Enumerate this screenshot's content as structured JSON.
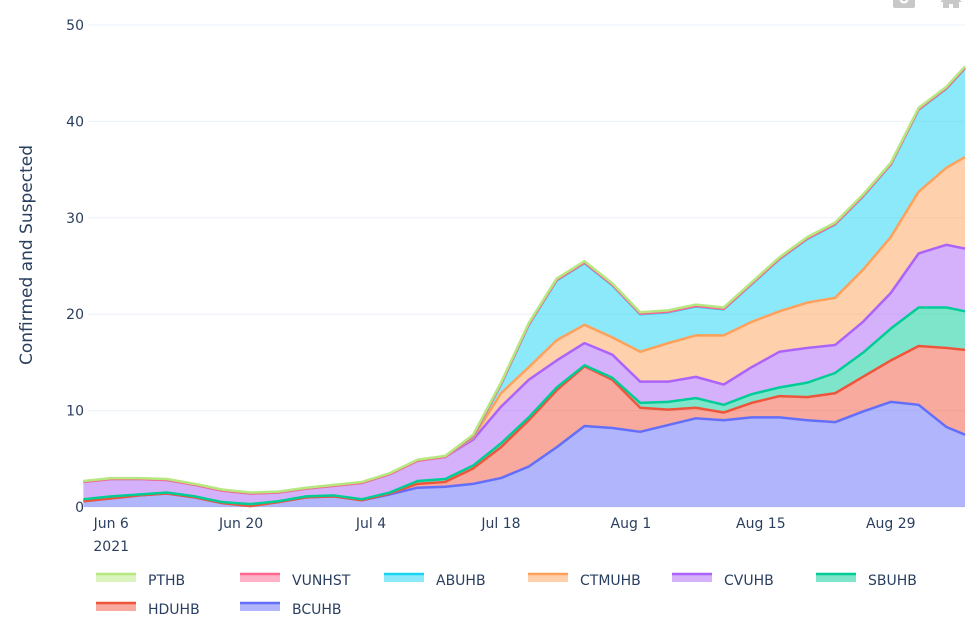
{
  "modebar": {
    "icons": [
      "camera-icon",
      "home-icon"
    ]
  },
  "chart_data": {
    "type": "area",
    "stacked": true,
    "title": "",
    "xlabel": "",
    "ylabel": "Confirmed and Suspected",
    "ylim": [
      0,
      50
    ],
    "yticks": [
      "0",
      "10",
      "20",
      "30",
      "40",
      "50"
    ],
    "x_range": [
      "2021-06-03",
      "2021-09-06"
    ],
    "xticks": [
      {
        "date": "2021-06-06",
        "label": "Jun 6",
        "sublabel": "2021"
      },
      {
        "date": "2021-06-20",
        "label": "Jun 20"
      },
      {
        "date": "2021-07-04",
        "label": "Jul 4"
      },
      {
        "date": "2021-07-18",
        "label": "Jul 18"
      },
      {
        "date": "2021-08-01",
        "label": "Aug 1"
      },
      {
        "date": "2021-08-15",
        "label": "Aug 15"
      },
      {
        "date": "2021-08-29",
        "label": "Aug 29"
      }
    ],
    "grid": true,
    "legend_placement": "bottom",
    "legend_order": [
      "PTHB",
      "VUNHST",
      "ABUHB",
      "CTMUHB",
      "CVUHB",
      "SBUHB",
      "HDUHB",
      "BCUHB"
    ],
    "x": [
      "2021-06-03",
      "2021-06-06",
      "2021-06-09",
      "2021-06-12",
      "2021-06-15",
      "2021-06-18",
      "2021-06-21",
      "2021-06-24",
      "2021-06-27",
      "2021-06-30",
      "2021-07-03",
      "2021-07-06",
      "2021-07-09",
      "2021-07-12",
      "2021-07-15",
      "2021-07-18",
      "2021-07-21",
      "2021-07-24",
      "2021-07-27",
      "2021-07-30",
      "2021-08-02",
      "2021-08-05",
      "2021-08-08",
      "2021-08-11",
      "2021-08-14",
      "2021-08-17",
      "2021-08-20",
      "2021-08-23",
      "2021-08-26",
      "2021-08-29",
      "2021-09-01",
      "2021-09-04",
      "2021-09-06"
    ],
    "series": [
      {
        "name": "BCUHB",
        "color": "#636efa",
        "values": [
          0.6,
          0.9,
          1.2,
          1.4,
          1.0,
          0.4,
          0.1,
          0.5,
          1.0,
          1.1,
          0.7,
          1.3,
          2.0,
          2.1,
          2.4,
          3.0,
          4.2,
          6.2,
          8.4,
          8.2,
          7.8,
          8.5,
          9.2,
          9.0,
          9.3,
          9.3,
          9.0,
          8.8,
          9.9,
          10.9,
          10.6,
          8.3,
          7.5
        ]
      },
      {
        "name": "HDUHB",
        "color": "#ef553b",
        "values": [
          0,
          0,
          0,
          0,
          0,
          0,
          0,
          0,
          0,
          0,
          0,
          0.1,
          0.4,
          0.5,
          1.6,
          3.2,
          4.8,
          5.9,
          6.2,
          5.0,
          2.5,
          1.6,
          1.1,
          0.8,
          1.5,
          2.2,
          2.4,
          3.0,
          3.6,
          4.3,
          6.1,
          8.2,
          8.8
        ]
      },
      {
        "name": "SBUHB",
        "color": "#00cc96",
        "values": [
          0.2,
          0.2,
          0.1,
          0.1,
          0.1,
          0.1,
          0.2,
          0.1,
          0.1,
          0.1,
          0.1,
          0.1,
          0.3,
          0.3,
          0.3,
          0.4,
          0.3,
          0.3,
          0.1,
          0.2,
          0.5,
          0.8,
          1.0,
          0.8,
          0.9,
          0.9,
          1.5,
          2.1,
          2.5,
          3.3,
          4.0,
          4.2,
          4.0
        ]
      },
      {
        "name": "CVUHB",
        "color": "#ab63fa",
        "values": [
          1.8,
          1.8,
          1.6,
          1.3,
          1.2,
          1.2,
          1.1,
          0.9,
          0.8,
          1.0,
          1.7,
          1.9,
          2.1,
          2.3,
          2.7,
          3.8,
          3.9,
          2.8,
          2.3,
          2.4,
          2.2,
          2.1,
          2.2,
          2.1,
          2.8,
          3.7,
          3.6,
          2.9,
          3.2,
          3.7,
          5.6,
          6.5,
          6.5
        ]
      },
      {
        "name": "CTMUHB",
        "color": "#ffa15a",
        "values": [
          0,
          0,
          0,
          0,
          0,
          0,
          0,
          0,
          0,
          0,
          0,
          0,
          0,
          0,
          0.2,
          1.4,
          1.3,
          2.1,
          1.9,
          1.8,
          3.1,
          4.0,
          4.3,
          5.1,
          4.7,
          4.2,
          4.7,
          4.9,
          5.4,
          5.8,
          6.4,
          8.0,
          9.5
        ]
      },
      {
        "name": "ABUHB",
        "color": "#19d3f3",
        "values": [
          0,
          0,
          0,
          0,
          0,
          0,
          0,
          0,
          0,
          0,
          0,
          0,
          0,
          0,
          0.1,
          0.9,
          4.4,
          6.2,
          6.4,
          5.4,
          3.9,
          3.2,
          3.0,
          2.7,
          3.9,
          5.4,
          6.6,
          7.6,
          7.6,
          7.5,
          8.5,
          8.2,
          9.2
        ]
      },
      {
        "name": "VUNHST",
        "color": "#ff6692",
        "values": [
          0,
          0,
          0,
          0,
          0,
          0,
          0,
          0,
          0,
          0,
          0,
          0,
          0,
          0,
          0.05,
          0.05,
          0.05,
          0.05,
          0.05,
          0.05,
          0.05,
          0.05,
          0.05,
          0.05,
          0.05,
          0.05,
          0.05,
          0.05,
          0.05,
          0.05,
          0.05,
          0.05,
          0.05
        ]
      },
      {
        "name": "PTHB",
        "color": "#b6e880",
        "values": [
          0.1,
          0.1,
          0.1,
          0.1,
          0.1,
          0.1,
          0.1,
          0.1,
          0.1,
          0.1,
          0.1,
          0.1,
          0.1,
          0.1,
          0.15,
          0.15,
          0.15,
          0.15,
          0.15,
          0.15,
          0.15,
          0.15,
          0.15,
          0.15,
          0.15,
          0.15,
          0.15,
          0.15,
          0.15,
          0.15,
          0.15,
          0.15,
          0.15
        ]
      }
    ]
  }
}
